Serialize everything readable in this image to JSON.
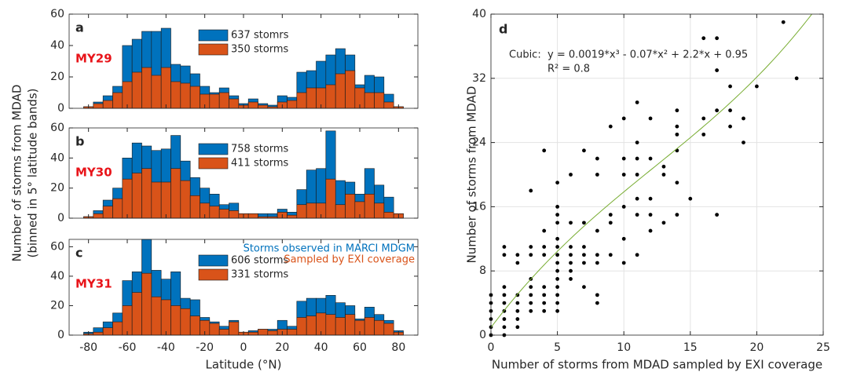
{
  "chart_data": [
    {
      "type": "bar",
      "label": "a",
      "year_label": "MY29",
      "year_color": "#e8141a",
      "x": [
        -80,
        -75,
        -70,
        -65,
        -60,
        -55,
        -50,
        -45,
        -40,
        -35,
        -30,
        -25,
        -20,
        -15,
        -10,
        -5,
        0,
        5,
        10,
        15,
        20,
        25,
        30,
        35,
        40,
        45,
        50,
        55,
        60,
        65,
        70,
        75,
        80
      ],
      "series": [
        {
          "name": "637 stomrs",
          "color": "#0072bd",
          "values": [
            1,
            4,
            8,
            14,
            40,
            44,
            49,
            49,
            51,
            28,
            27,
            22,
            14,
            10,
            13,
            8,
            3,
            6,
            3,
            2,
            8,
            7,
            23,
            24,
            30,
            34,
            38,
            34,
            15,
            21,
            20,
            9,
            1
          ]
        },
        {
          "name": "350 storms",
          "color": "#d95319",
          "values": [
            1,
            3,
            5,
            10,
            17,
            23,
            26,
            21,
            26,
            17,
            16,
            14,
            9,
            9,
            10,
            6,
            2,
            4,
            2,
            1,
            4,
            5,
            10,
            13,
            13,
            15,
            22,
            24,
            13,
            10,
            10,
            4,
            1
          ]
        }
      ],
      "xlim": [
        -90,
        90
      ],
      "xticks": [
        -80,
        -60,
        -40,
        -20,
        0,
        20,
        40,
        60,
        80
      ],
      "show_xtick_labels": false,
      "ylim": [
        0,
        60
      ],
      "yticks": [
        0,
        20,
        40,
        60
      ]
    },
    {
      "type": "bar",
      "label": "b",
      "year_label": "MY30",
      "year_color": "#e8141a",
      "ylabel": [
        "Number of storms from MDAD",
        "(binned in 5° latitude bands)"
      ],
      "x": [
        -80,
        -75,
        -70,
        -65,
        -60,
        -55,
        -50,
        -45,
        -40,
        -35,
        -30,
        -25,
        -20,
        -15,
        -10,
        -5,
        0,
        5,
        10,
        15,
        20,
        25,
        30,
        35,
        40,
        45,
        50,
        55,
        60,
        65,
        70,
        75,
        80
      ],
      "series": [
        {
          "name": "758 storms",
          "color": "#0072bd",
          "values": [
            1,
            5,
            12,
            20,
            40,
            50,
            48,
            45,
            46,
            55,
            38,
            27,
            20,
            16,
            9,
            10,
            3,
            3,
            3,
            3,
            6,
            4,
            19,
            32,
            33,
            58,
            25,
            24,
            16,
            33,
            22,
            14,
            3
          ]
        },
        {
          "name": "411 storms",
          "color": "#d95319",
          "values": [
            1,
            3,
            8,
            13,
            26,
            30,
            33,
            24,
            24,
            33,
            25,
            15,
            10,
            8,
            6,
            5,
            3,
            3,
            1,
            1,
            4,
            2,
            9,
            10,
            10,
            26,
            9,
            16,
            11,
            16,
            10,
            4,
            3
          ]
        }
      ],
      "xlim": [
        -90,
        90
      ],
      "xticks": [
        -80,
        -60,
        -40,
        -20,
        0,
        20,
        40,
        60,
        80
      ],
      "show_xtick_labels": false,
      "ylim": [
        0,
        60
      ],
      "yticks": [
        0,
        20,
        40,
        60
      ]
    },
    {
      "type": "bar",
      "label": "c",
      "year_label": "MY31",
      "year_color": "#e8141a",
      "xlabel": "Latitude (°N)",
      "annotations": [
        {
          "text": "Storms observed in MARCI MDGM",
          "color": "#0072bd"
        },
        {
          "text": "Sampled by EXI coverage",
          "color": "#d95319"
        }
      ],
      "x": [
        -80,
        -75,
        -70,
        -65,
        -60,
        -55,
        -50,
        -45,
        -40,
        -35,
        -30,
        -25,
        -20,
        -15,
        -10,
        -5,
        0,
        5,
        10,
        15,
        20,
        25,
        30,
        35,
        40,
        45,
        50,
        55,
        60,
        65,
        70,
        75,
        80
      ],
      "series": [
        {
          "name": "606 storms",
          "color": "#0072bd",
          "values": [
            2,
            5,
            9,
            15,
            37,
            43,
            65,
            44,
            38,
            43,
            25,
            24,
            12,
            9,
            6,
            10,
            2,
            3,
            4,
            4,
            10,
            6,
            23,
            25,
            25,
            27,
            22,
            20,
            11,
            19,
            14,
            10,
            3
          ]
        },
        {
          "name": "331 storms",
          "color": "#d95319",
          "values": [
            1,
            2,
            5,
            9,
            20,
            29,
            42,
            26,
            24,
            20,
            18,
            13,
            10,
            8,
            4,
            9,
            2,
            2,
            4,
            3,
            4,
            4,
            12,
            13,
            15,
            14,
            12,
            14,
            10,
            12,
            10,
            8,
            2
          ]
        }
      ],
      "xlim": [
        -90,
        90
      ],
      "xticks": [
        -80,
        -60,
        -40,
        -20,
        0,
        20,
        40,
        60,
        80
      ],
      "show_xtick_labels": true,
      "ylim": [
        0,
        65
      ],
      "yticks": [
        0,
        20,
        40,
        60
      ]
    },
    {
      "type": "scatter",
      "label": "d",
      "color": "#000000",
      "grid": true,
      "xlabel": "Number of storms from MDAD sampled by EXI coverage",
      "ylabel": "Number of storms from MDAD",
      "fit": {
        "name": "Cubic:",
        "equation": "y = 0.0019*x³ - 0.07*x² + 2.2*x + 0.95",
        "r2": "R² = 0.8",
        "coefficients": [
          0.0019,
          -0.07,
          2.2,
          0.95
        ],
        "color": "#77ac30"
      },
      "x": [
        0,
        0,
        0,
        0,
        0,
        0,
        1,
        1,
        1,
        1,
        1,
        1,
        1,
        1,
        1,
        2,
        2,
        2,
        2,
        2,
        2,
        2,
        3,
        3,
        3,
        3,
        3,
        3,
        3,
        3,
        4,
        4,
        4,
        4,
        4,
        4,
        4,
        4,
        5,
        5,
        5,
        5,
        5,
        5,
        5,
        5,
        5,
        5,
        5,
        5,
        5,
        5,
        6,
        6,
        6,
        6,
        6,
        6,
        6,
        7,
        7,
        7,
        7,
        7,
        7,
        8,
        8,
        8,
        8,
        8,
        8,
        8,
        9,
        9,
        9,
        9,
        10,
        10,
        10,
        10,
        10,
        10,
        11,
        11,
        11,
        11,
        11,
        11,
        11,
        12,
        12,
        12,
        12,
        12,
        13,
        13,
        13,
        14,
        14,
        14,
        14,
        14,
        14,
        15,
        16,
        16,
        16,
        17,
        17,
        17,
        17,
        18,
        18,
        18,
        19,
        19,
        20,
        22,
        23
      ],
      "y": [
        0,
        1,
        2,
        3,
        4,
        5,
        0,
        1,
        2,
        3,
        4,
        5,
        6,
        10,
        11,
        1,
        2,
        3,
        4,
        5,
        9,
        10,
        3,
        4,
        5,
        6,
        7,
        10,
        11,
        18,
        3,
        4,
        5,
        6,
        10,
        11,
        13,
        23,
        3,
        4,
        5,
        6,
        7,
        8,
        9,
        10,
        11,
        12,
        14,
        15,
        16,
        19,
        7,
        8,
        9,
        10,
        11,
        14,
        20,
        6,
        9,
        10,
        11,
        14,
        23,
        4,
        5,
        9,
        10,
        13,
        20,
        22,
        10,
        14,
        15,
        26,
        9,
        12,
        16,
        20,
        22,
        27,
        10,
        15,
        17,
        20,
        22,
        24,
        29,
        13,
        15,
        17,
        22,
        27,
        14,
        20,
        21,
        15,
        19,
        23,
        25,
        26,
        28,
        17,
        25,
        27,
        37,
        15,
        28,
        33,
        37,
        26,
        28,
        31,
        24,
        27,
        31,
        39,
        32
      ],
      "xlim": [
        0,
        25
      ],
      "xticks": [
        0,
        5,
        10,
        15,
        20,
        25
      ],
      "ylim": [
        0,
        40
      ],
      "yticks": [
        0,
        8,
        16,
        24,
        32,
        40
      ]
    }
  ]
}
